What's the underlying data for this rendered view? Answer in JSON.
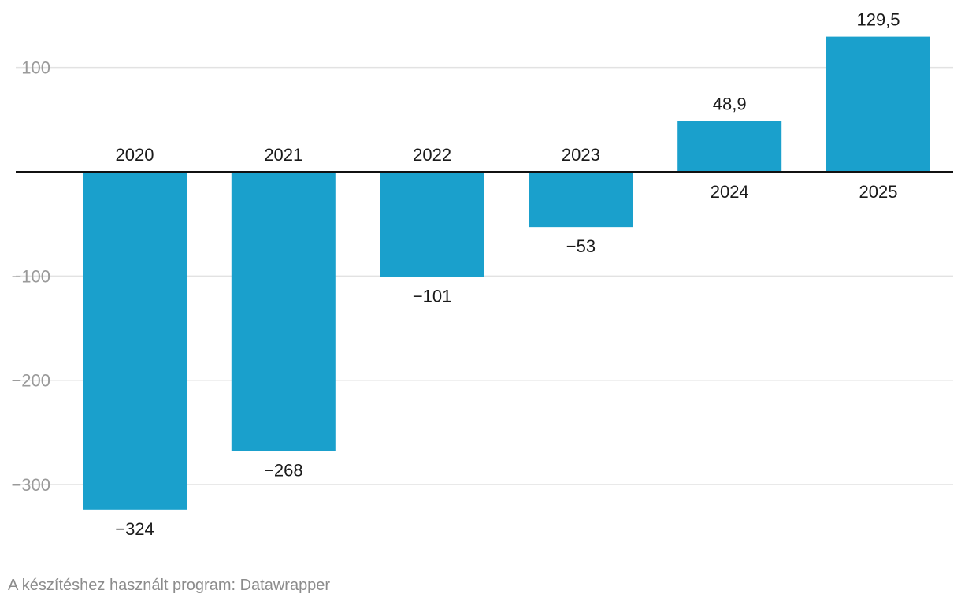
{
  "chart_data": {
    "type": "bar",
    "categories": [
      "2020",
      "2021",
      "2022",
      "2023",
      "2024",
      "2025"
    ],
    "values": [
      -324,
      -268,
      -101,
      -53,
      48.9,
      129.5
    ],
    "value_labels": [
      "−324",
      "−268",
      "−101",
      "−53",
      "48,9",
      "129,5"
    ],
    "y_ticks": [
      100,
      -100,
      -200,
      -300
    ],
    "y_tick_labels": [
      "100",
      "−100",
      "−200",
      "−300"
    ],
    "ylim": [
      -330,
      130
    ],
    "grid": true,
    "title": "",
    "xlabel": "",
    "ylabel": ""
  },
  "colors": {
    "bar": "#1aa0cc",
    "grid": "#e2e2e2",
    "baseline": "#111111",
    "tick_label": "#9a9a9a",
    "label": "#1a1a1a"
  },
  "footer": {
    "credit": "A készítéshez használt program: Datawrapper"
  }
}
